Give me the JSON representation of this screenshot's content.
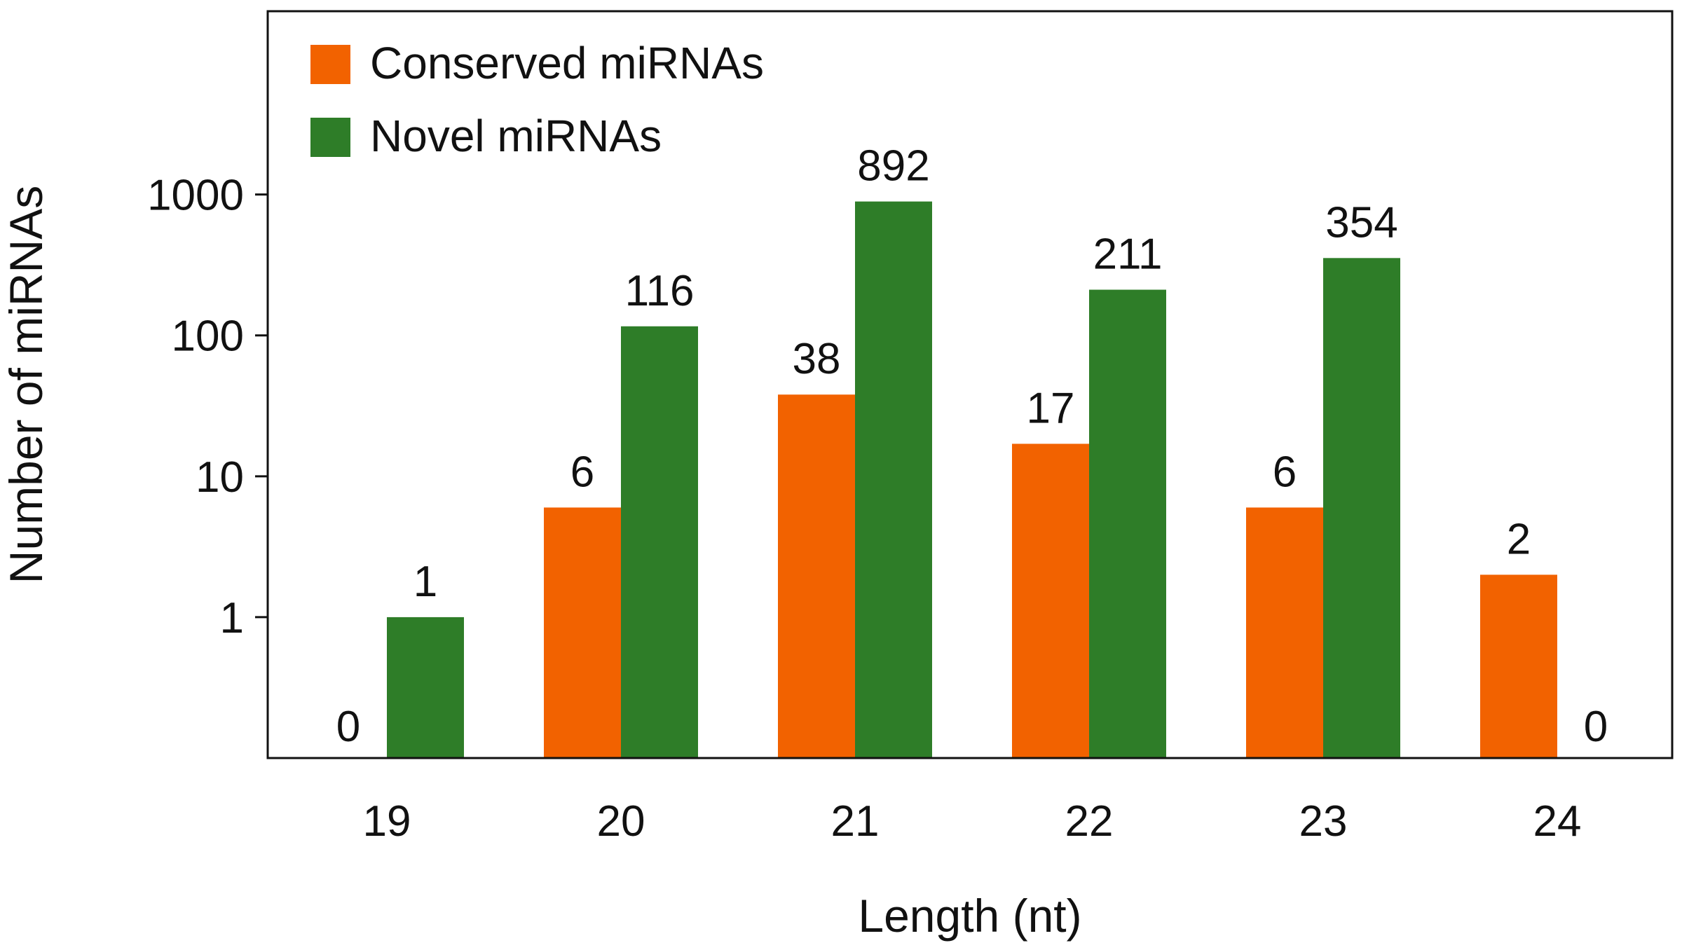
{
  "chart_data": {
    "type": "bar",
    "title": "",
    "xlabel": "Length (nt)",
    "ylabel": "Number of miRNAs",
    "yscale": "log",
    "ylim": [
      0.1,
      20000
    ],
    "yticks": [
      1,
      10,
      100,
      1000
    ],
    "ytick_labels": [
      "1",
      "10",
      "100",
      "1000"
    ],
    "categories": [
      "19",
      "20",
      "21",
      "22",
      "23",
      "24"
    ],
    "series": [
      {
        "name": "Conserved miRNAs",
        "color": "#f26200",
        "values": [
          0,
          6,
          38,
          17,
          6,
          2
        ],
        "labels": [
          "0",
          "6",
          "38",
          "17",
          "6",
          "2"
        ]
      },
      {
        "name": "Novel miRNAs",
        "color": "#2e7d28",
        "values": [
          1,
          116,
          892,
          211,
          354,
          0
        ],
        "labels": [
          "1",
          "116",
          "892",
          "211",
          "354",
          "0"
        ]
      }
    ],
    "legend": "top-left",
    "grid": false
  }
}
